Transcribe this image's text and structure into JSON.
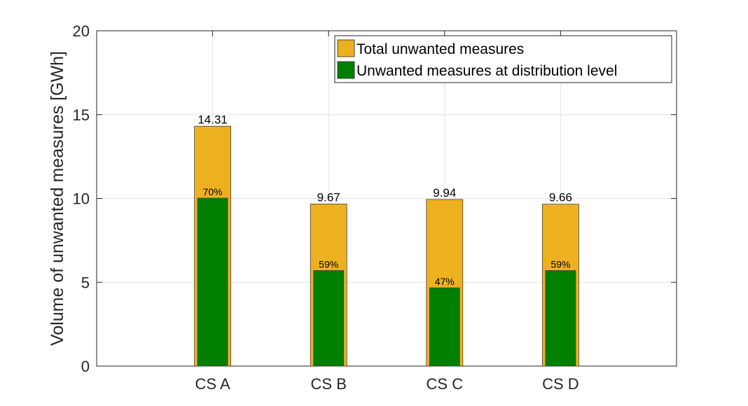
{
  "chart_data": {
    "type": "bar",
    "categories": [
      "CS A",
      "CS B",
      "CS C",
      "CS D"
    ],
    "series": [
      {
        "name": "Total unwanted measures",
        "values": [
          14.31,
          9.67,
          9.94,
          9.66
        ],
        "color": "#EDB120",
        "labels": [
          "14.31",
          "9.67",
          "9.94",
          "9.66"
        ]
      },
      {
        "name": "Unwanted measures at distribution level",
        "values": [
          10.02,
          5.7,
          4.67,
          5.7
        ],
        "color": "#007F00",
        "labels": [
          "70%",
          "59%",
          "47%",
          "59%"
        ]
      }
    ],
    "ylabel": "Volume of unwanted measures [GWh]",
    "xlabel": "",
    "ylim": [
      0,
      20
    ],
    "yticks": [
      0,
      5,
      10,
      15,
      20
    ],
    "grid": true,
    "legend_position": "top-right"
  }
}
